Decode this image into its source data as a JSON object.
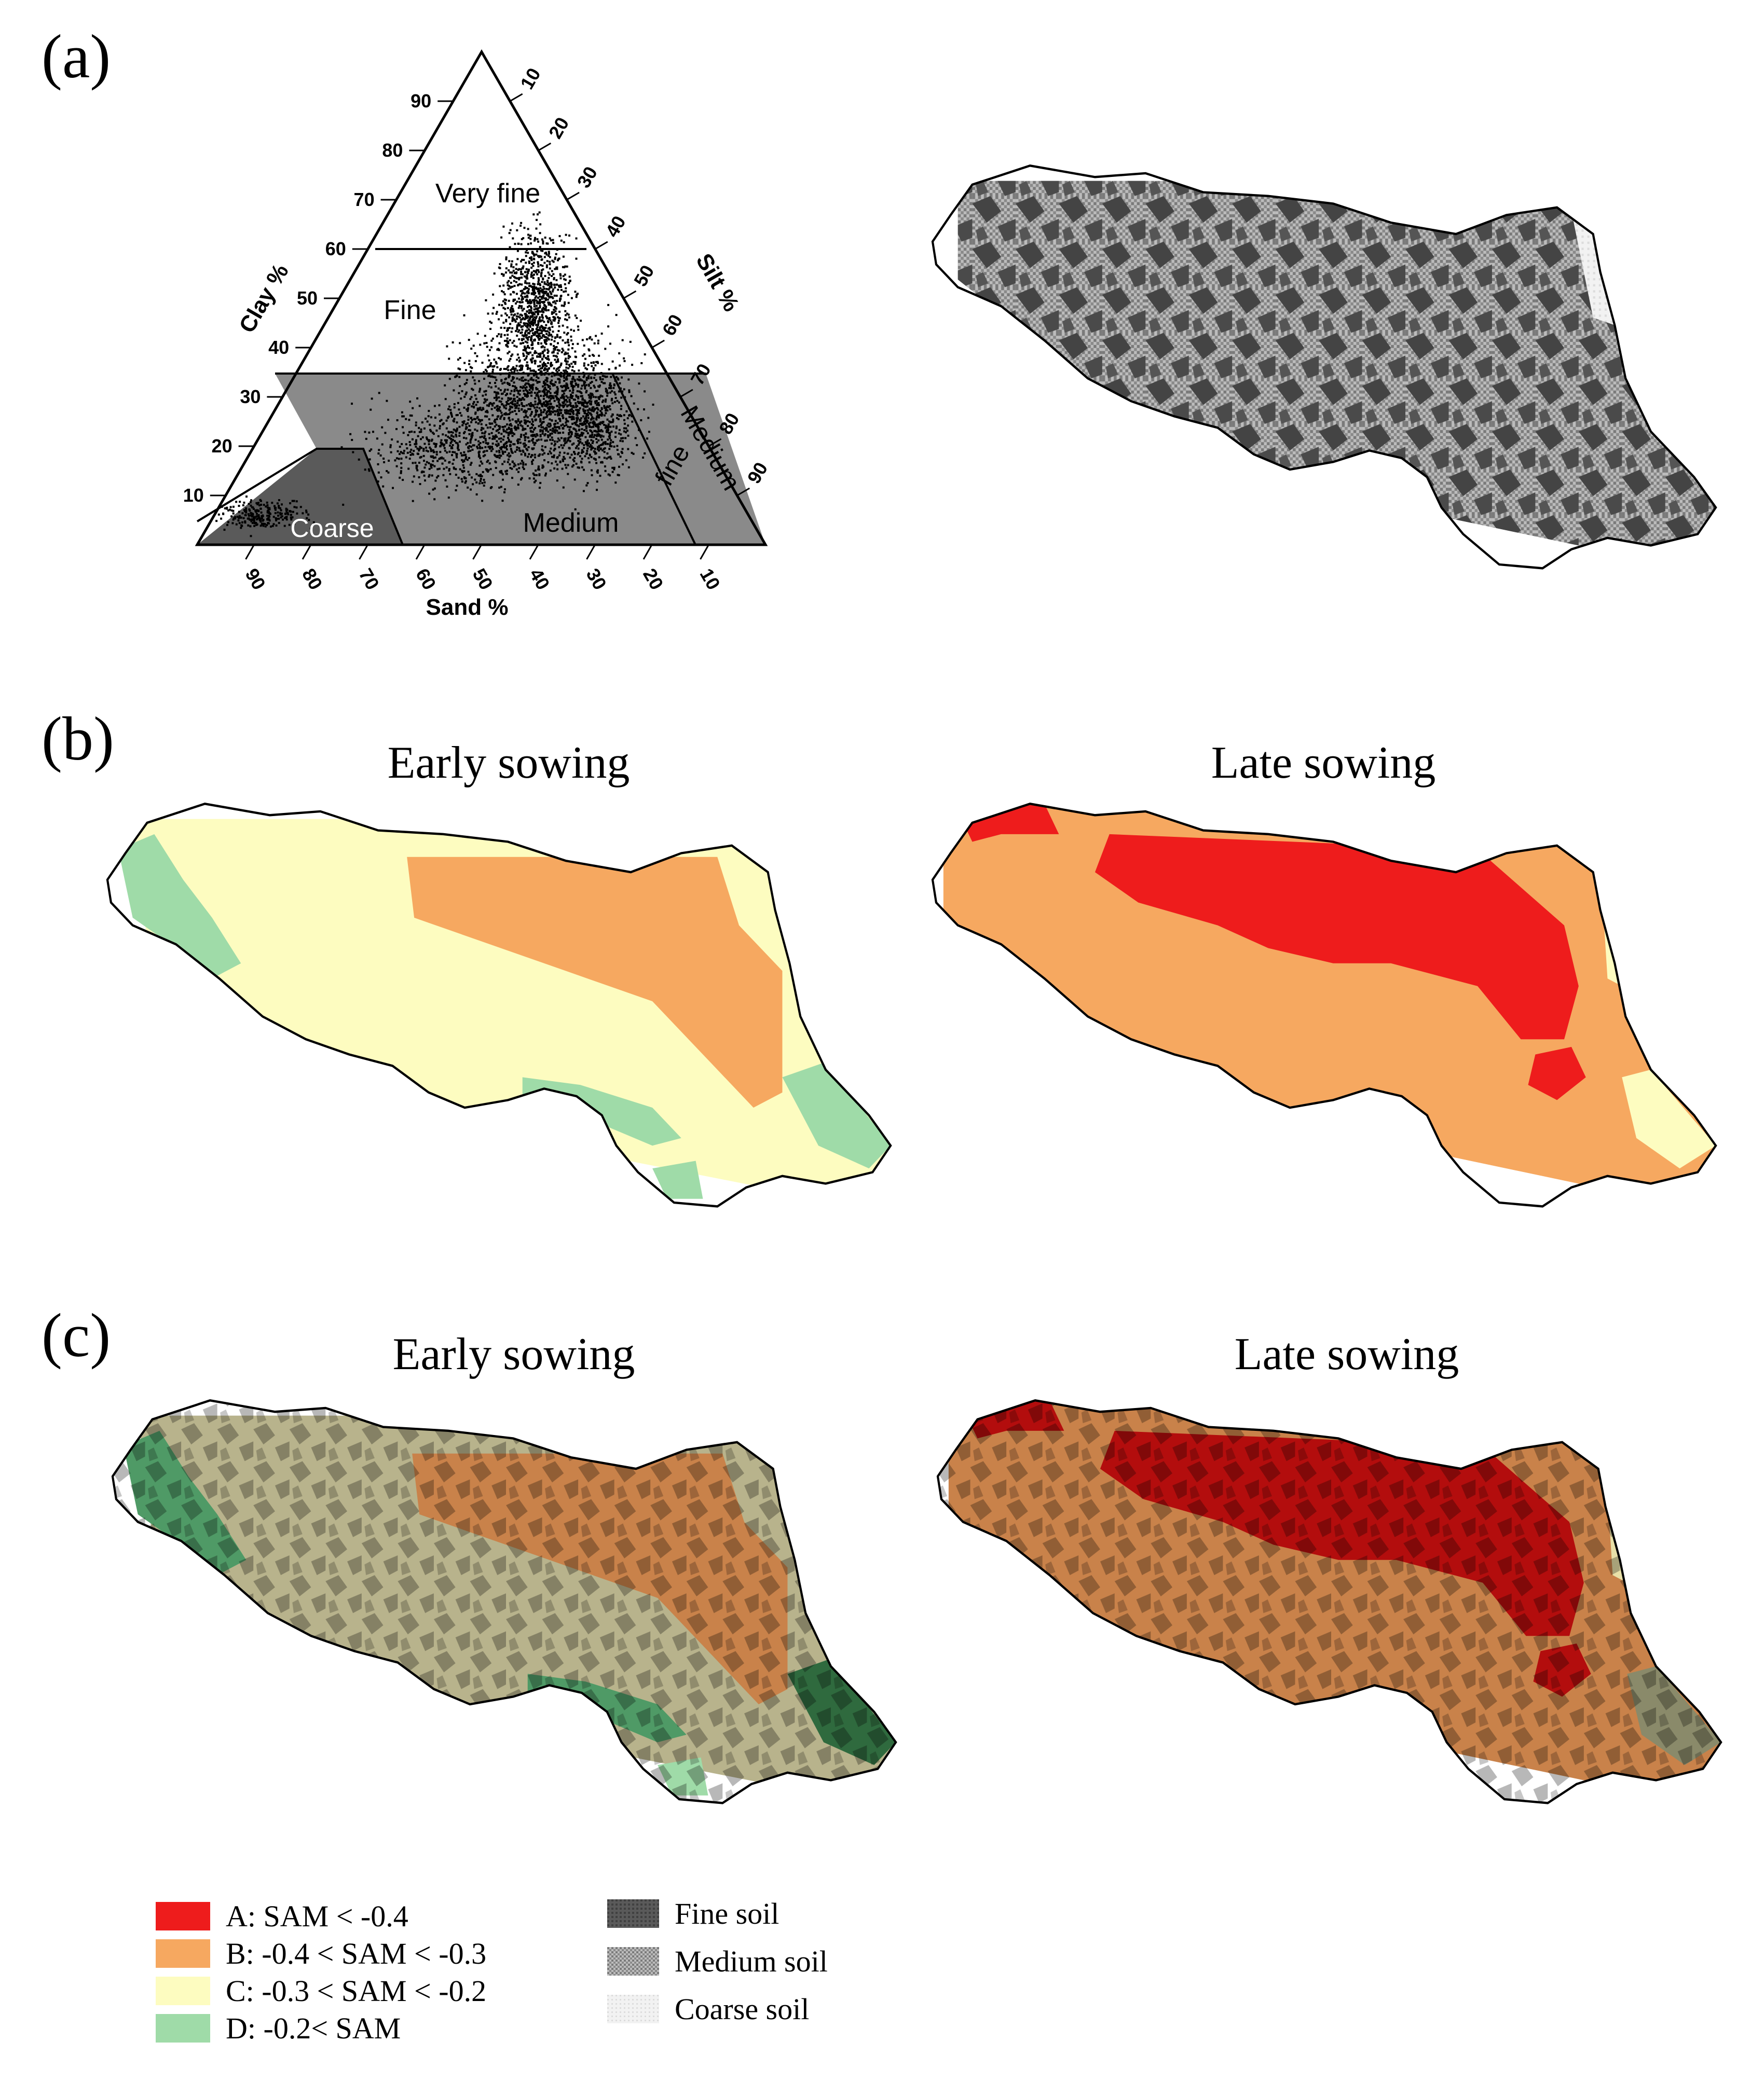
{
  "panels": {
    "a": {
      "label": "(a)"
    },
    "b": {
      "label": "(b)",
      "maps": [
        {
          "title": "Early sowing"
        },
        {
          "title": "Late sowing"
        }
      ]
    },
    "c": {
      "label": "(c)",
      "maps": [
        {
          "title": "Early sowing"
        },
        {
          "title": "Late sowing"
        }
      ]
    }
  },
  "ternary": {
    "axis_labels": {
      "clay": "Clay %",
      "silt": "Silt %",
      "sand": "Sand %"
    },
    "clay_ticks": [
      "10",
      "20",
      "30",
      "40",
      "50",
      "60",
      "70",
      "80",
      "90"
    ],
    "silt_ticks": [
      "10",
      "20",
      "30",
      "40",
      "50",
      "60",
      "70",
      "80",
      "90"
    ],
    "sand_ticks": [
      "90",
      "80",
      "70",
      "60",
      "50",
      "40",
      "30",
      "20",
      "10"
    ],
    "classes": {
      "very_fine": "Very fine",
      "fine": "Fine",
      "medium": "Medium",
      "medium_fine_1": "Medium",
      "medium_fine_2": "fine",
      "coarse": "Coarse"
    }
  },
  "legend": {
    "sam_classes": [
      {
        "label": "A: SAM < -0.4",
        "color": "#ee1c1c"
      },
      {
        "label": "B: -0.4 < SAM < -0.3",
        "color": "#f6a860"
      },
      {
        "label": "C: -0.3 < SAM < -0.2",
        "color": "#fdfcc0"
      },
      {
        "label": "D: -0.2< SAM",
        "color": "#9fdba8"
      }
    ],
    "soil_classes": [
      {
        "label": "Fine soil",
        "pattern": "fine"
      },
      {
        "label": "Medium soil",
        "pattern": "medium"
      },
      {
        "label": "Coarse soil",
        "pattern": "coarse"
      }
    ]
  },
  "colors": {
    "A": "#ee1c1c",
    "B": "#f6a860",
    "C": "#fdfcc0",
    "D": "#9fdba8",
    "A_overlay": "#b30d0d",
    "B_overlay": "#c9824a",
    "C_overlay": "#b8b38c",
    "D_overlay": "#4f9a66"
  }
}
